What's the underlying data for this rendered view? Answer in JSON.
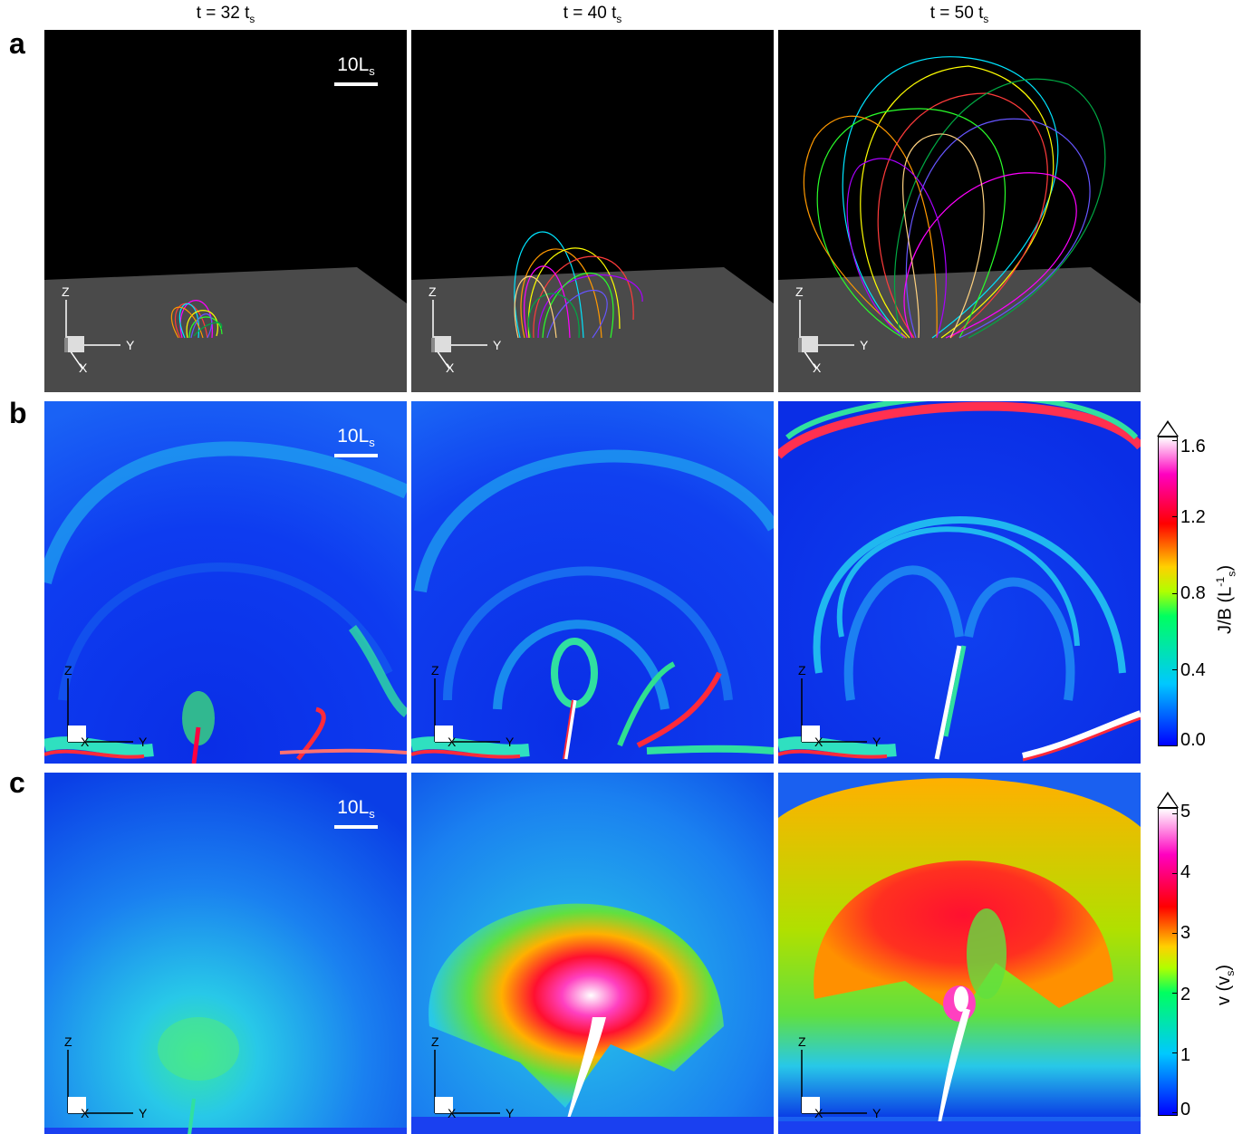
{
  "columns": [
    {
      "t": "t = 32 t",
      "unit_sub": "s"
    },
    {
      "t": "t = 40 t",
      "unit_sub": "s"
    },
    {
      "t": "t = 50 t",
      "unit_sub": "s"
    }
  ],
  "rows": [
    {
      "label": "a"
    },
    {
      "label": "b"
    },
    {
      "label": "c"
    }
  ],
  "scale_bar": {
    "text": "10L",
    "sub": "s"
  },
  "axes": {
    "z": "Z",
    "y": "Y",
    "x": "X"
  },
  "colorbar_jb": {
    "title_main": "J/B (L",
    "title_sup": "-1",
    "title_sub": "s",
    "title_end": ")",
    "ticks": [
      "0.0",
      "0.4",
      "0.8",
      "1.2",
      "1.6"
    ]
  },
  "colorbar_v": {
    "title_main": "v (v",
    "title_sub": "s",
    "title_end": ")",
    "ticks": [
      "0",
      "1",
      "2",
      "3",
      "4",
      "5"
    ]
  },
  "colors": {
    "background_3d": "#000000",
    "plane": "#4a4a4a",
    "field_low": "#0a2ee6",
    "field_high": "#ffffff"
  }
}
